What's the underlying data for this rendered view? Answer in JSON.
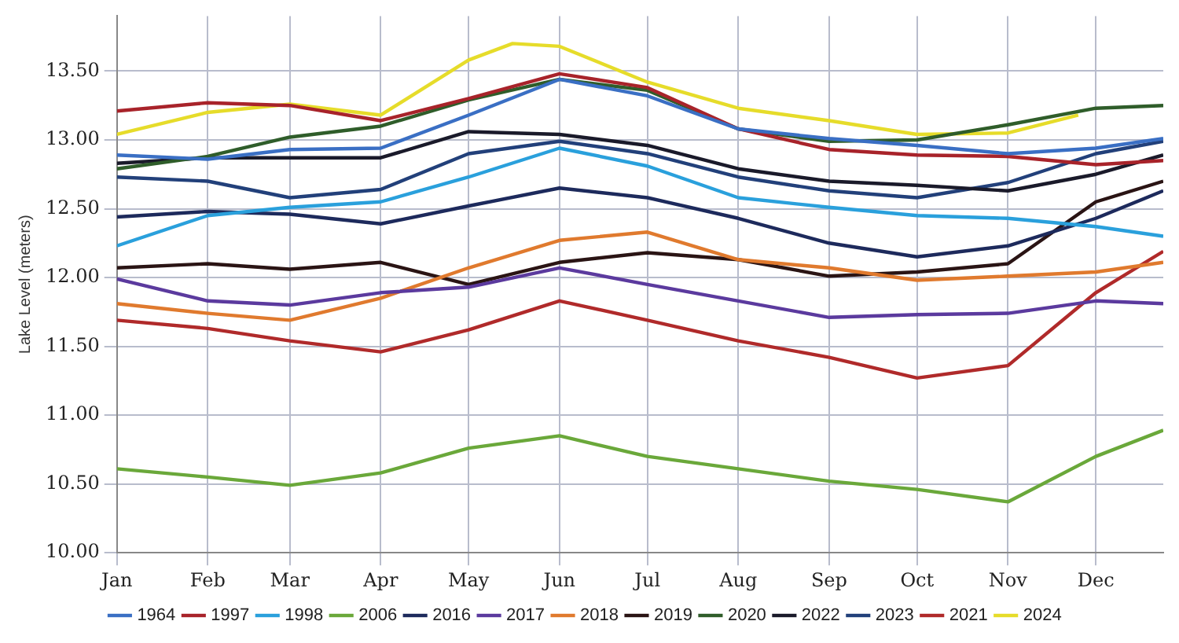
{
  "chart_data": {
    "type": "line",
    "ylabel": "Lake Level (meters)",
    "x": [
      "--01-01",
      "--02-01",
      "--03-01",
      "--04-01",
      "--05-01",
      "--06-01",
      "--07-01",
      "--08-01",
      "--09-01",
      "--10-01",
      "--11-01",
      "--12-01",
      "--12-24"
    ],
    "xlim": [
      "--01-01",
      "--12-24"
    ],
    "xticks": [
      {
        "value": "--01-01",
        "label": "Jan"
      },
      {
        "value": "--02-01",
        "label": "Feb"
      },
      {
        "value": "--03-01",
        "label": "Mar"
      },
      {
        "value": "--04-01",
        "label": "Apr"
      },
      {
        "value": "--05-01",
        "label": "May"
      },
      {
        "value": "--06-01",
        "label": "Jun"
      },
      {
        "value": "--07-01",
        "label": "Jul"
      },
      {
        "value": "--08-01",
        "label": "Aug"
      },
      {
        "value": "--09-01",
        "label": "Sep"
      },
      {
        "value": "--10-01",
        "label": "Oct"
      },
      {
        "value": "--11-01",
        "label": "Nov"
      },
      {
        "value": "--12-01",
        "label": "Dec"
      }
    ],
    "ylim": [
      10,
      13.9
    ],
    "yticks": [
      {
        "value": 10,
        "label": "10.00"
      },
      {
        "value": 10.5,
        "label": "10.50"
      },
      {
        "value": 11,
        "label": "11.00"
      },
      {
        "value": 11.5,
        "label": "11.50"
      },
      {
        "value": 12,
        "label": "12.00"
      },
      {
        "value": 12.5,
        "label": "12.50"
      },
      {
        "value": 13,
        "label": "13.00"
      },
      {
        "value": 13.5,
        "label": "13.50"
      }
    ],
    "grid": true,
    "legend": "bottom",
    "marker": "none",
    "line_style": "solid",
    "series": [
      {
        "name": "1964",
        "color": "#3a6fc4",
        "values": [
          12.89,
          12.86,
          12.93,
          12.94,
          13.18,
          13.44,
          13.32,
          13.08,
          13.01,
          12.96,
          12.9,
          12.94,
          13.01
        ]
      },
      {
        "name": "1997",
        "color": "#a8232a",
        "values": [
          13.21,
          13.27,
          13.25,
          13.14,
          13.3,
          13.48,
          13.38,
          13.08,
          12.93,
          12.89,
          12.88,
          12.82,
          12.85
        ]
      },
      {
        "name": "1998",
        "color": "#2aa0dc",
        "values": [
          12.23,
          12.45,
          12.51,
          12.55,
          12.73,
          12.94,
          12.81,
          12.58,
          12.51,
          12.45,
          12.43,
          12.37,
          12.3
        ]
      },
      {
        "name": "2006",
        "color": "#6aa83a",
        "values": [
          10.61,
          10.55,
          10.49,
          10.58,
          10.76,
          10.85,
          10.7,
          10.61,
          10.52,
          10.46,
          10.37,
          10.7,
          10.89
        ]
      },
      {
        "name": "2016",
        "color": "#1d2a5c",
        "values": [
          12.44,
          12.48,
          12.46,
          12.39,
          12.52,
          12.65,
          12.58,
          12.43,
          12.25,
          12.15,
          12.23,
          12.43,
          12.63
        ]
      },
      {
        "name": "2017",
        "color": "#5b3a9e",
        "values": [
          11.99,
          11.83,
          11.8,
          11.89,
          11.93,
          12.07,
          11.95,
          11.83,
          11.71,
          11.73,
          11.74,
          11.83,
          11.81
        ]
      },
      {
        "name": "2018",
        "color": "#e07a2e",
        "values": [
          11.81,
          11.74,
          11.69,
          11.85,
          12.07,
          12.27,
          12.33,
          12.13,
          12.07,
          11.98,
          12.01,
          12.04,
          12.11
        ]
      },
      {
        "name": "2019",
        "color": "#2a1414",
        "values": [
          12.07,
          12.1,
          12.06,
          12.11,
          11.95,
          12.11,
          12.18,
          12.13,
          12.01,
          12.04,
          12.1,
          12.55,
          12.7
        ]
      },
      {
        "name": "2020",
        "color": "#2f5d2a",
        "values": [
          12.79,
          12.88,
          13.02,
          13.1,
          13.29,
          13.44,
          13.36,
          13.08,
          12.99,
          13.0,
          13.11,
          13.23,
          13.25
        ]
      },
      {
        "name": "2022",
        "color": "#1a1a2a",
        "values": [
          12.83,
          12.87,
          12.87,
          12.87,
          13.06,
          13.04,
          12.96,
          12.79,
          12.7,
          12.67,
          12.63,
          12.75,
          12.89
        ]
      },
      {
        "name": "2023",
        "color": "#22407a",
        "values": [
          12.73,
          12.7,
          12.58,
          12.64,
          12.9,
          12.99,
          12.9,
          12.73,
          12.63,
          12.58,
          12.69,
          12.9,
          12.99
        ]
      },
      {
        "name": "2021",
        "color": "#b02a2a",
        "values": [
          11.69,
          11.63,
          11.54,
          11.46,
          11.62,
          11.83,
          11.69,
          11.54,
          11.42,
          11.27,
          11.36,
          11.89,
          12.19
        ]
      },
      {
        "name": "2024",
        "color": "#e6dc2a",
        "x": [
          "--01-01",
          "--02-01",
          "--03-01",
          "--04-01",
          "--05-01",
          "--05-16",
          "--06-01",
          "--07-01",
          "--08-01",
          "--09-01",
          "--10-01",
          "--11-01",
          "--11-25"
        ],
        "values": [
          13.04,
          13.2,
          13.26,
          13.18,
          13.58,
          13.7,
          13.68,
          13.42,
          13.23,
          13.14,
          13.04,
          13.05,
          13.18
        ]
      }
    ]
  }
}
